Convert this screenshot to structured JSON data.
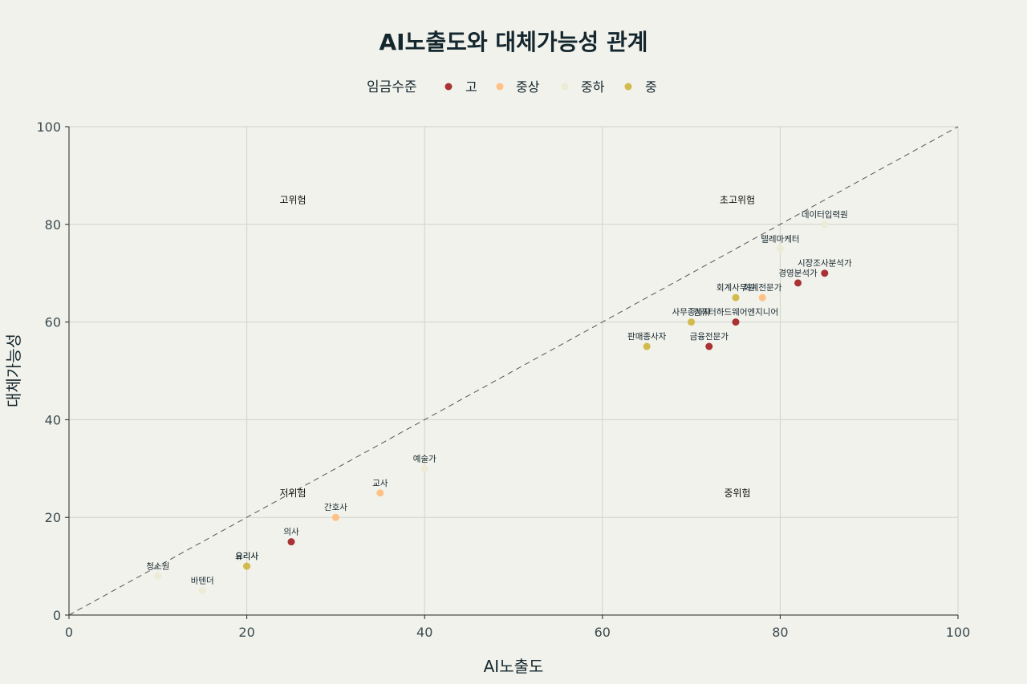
{
  "chart_data": {
    "type": "scatter",
    "title": "AI노출도와 대체가능성 관계",
    "xlabel": "AI노출도",
    "ylabel": "대체가능성",
    "xlim": [
      0,
      100
    ],
    "ylim": [
      0,
      100
    ],
    "xticks": [
      0,
      20,
      40,
      60,
      80,
      100
    ],
    "yticks": [
      0,
      20,
      40,
      60,
      80,
      100
    ],
    "grid": true,
    "reference_line": {
      "type": "diagonal",
      "style": "dashed",
      "from": [
        0,
        0
      ],
      "to": [
        100,
        100
      ]
    },
    "legend": {
      "title": "임금수준",
      "position": "top-center",
      "entries": [
        {
          "name": "고",
          "color": "#a83234"
        },
        {
          "name": "중상",
          "color": "#ffc185"
        },
        {
          "name": "중하",
          "color": "#ecebd5"
        },
        {
          "name": "중",
          "color": "#d2ba4c"
        }
      ]
    },
    "zones": [
      {
        "label": "고위험",
        "x": 25,
        "y": 85
      },
      {
        "label": "초고위험",
        "x": 75,
        "y": 85
      },
      {
        "label": "저위험",
        "x": 25,
        "y": 25
      },
      {
        "label": "중위험",
        "x": 75,
        "y": 25
      }
    ],
    "points": [
      {
        "label": "데이터입력원",
        "x": 85,
        "y": 80,
        "wage": "중하"
      },
      {
        "label": "텔레마케터",
        "x": 80,
        "y": 75,
        "wage": "중하"
      },
      {
        "label": "시장조사분석가",
        "x": 85,
        "y": 70,
        "wage": "고"
      },
      {
        "label": "경영분석가",
        "x": 82,
        "y": 68,
        "wage": "고"
      },
      {
        "label": "회계사무원",
        "x": 75,
        "y": 65,
        "wage": "중"
      },
      {
        "label": "회계전문가",
        "x": 78,
        "y": 65,
        "wage": "중상"
      },
      {
        "label": "사무종사자",
        "x": 70,
        "y": 60,
        "wage": "중"
      },
      {
        "label": "컴퓨터하드웨어엔지니어",
        "x": 75,
        "y": 60,
        "wage": "고"
      },
      {
        "label": "판매종사자",
        "x": 65,
        "y": 55,
        "wage": "중"
      },
      {
        "label": "금융전문가",
        "x": 72,
        "y": 55,
        "wage": "고"
      },
      {
        "label": "예술가",
        "x": 40,
        "y": 30,
        "wage": "중하"
      },
      {
        "label": "교사",
        "x": 35,
        "y": 25,
        "wage": "중상"
      },
      {
        "label": "간호사",
        "x": 30,
        "y": 20,
        "wage": "중상"
      },
      {
        "label": "의사",
        "x": 25,
        "y": 15,
        "wage": "고"
      },
      {
        "label": "요리사",
        "x": 20,
        "y": 10,
        "wage": "중"
      },
      {
        "label": "유리사",
        "x": 20,
        "y": 10,
        "wage": "중"
      },
      {
        "label": "청소원",
        "x": 10,
        "y": 8,
        "wage": "중하"
      },
      {
        "label": "바텐더",
        "x": 15,
        "y": 5,
        "wage": "중하"
      }
    ]
  }
}
